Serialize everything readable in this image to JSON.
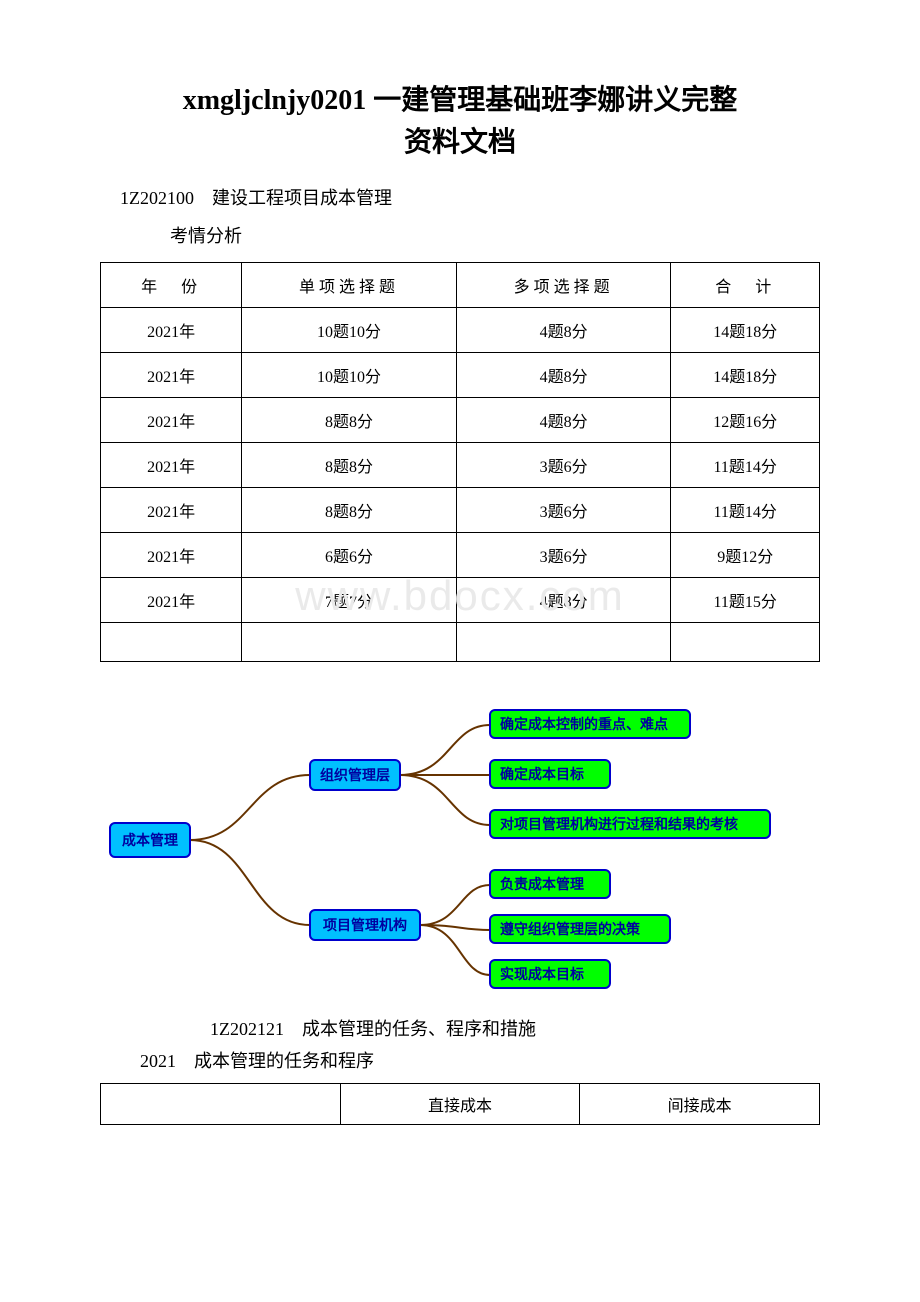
{
  "title_line1": "xmgljclnjy0201 一建管理基础班李娜讲义完整",
  "title_line2": "资料文档",
  "section_code": "1Z202100　建设工程项目成本管理",
  "analysis_label": "考情分析",
  "table": {
    "headers": [
      "年　份",
      "单项选择题",
      "多项选择题",
      "合　计"
    ],
    "rows": [
      [
        "2021年",
        "10题10分",
        "4题8分",
        "14题18分"
      ],
      [
        "2021年",
        "10题10分",
        "4题8分",
        "14题18分"
      ],
      [
        "2021年",
        "8题8分",
        "4题8分",
        "12题16分"
      ],
      [
        "2021年",
        "8题8分",
        "3题6分",
        "11题14分"
      ],
      [
        "2021年",
        "8题8分",
        "3题6分",
        "11题14分"
      ],
      [
        "2021年",
        "6题6分",
        "3题6分",
        "9题12分"
      ],
      [
        "2021年",
        "7题7分",
        "4题8分",
        "11题15分"
      ],
      [
        "",
        "",
        "",
        ""
      ]
    ]
  },
  "watermark": "www.bdocx.com",
  "diagram": {
    "root": "成本管理",
    "branch1": {
      "label": "组织管理层",
      "leaves": [
        "确定成本控制的重点、难点",
        "确定成本目标",
        "对项目管理机构进行过程和结果的考核"
      ]
    },
    "branch2": {
      "label": "项目管理机构",
      "leaves": [
        "负责成本管理",
        "遵守组织管理层的决策",
        "实现成本目标"
      ]
    },
    "colors": {
      "node_fill": "#00c0ff",
      "leaf_fill": "#00ff00",
      "border": "#0000cc",
      "edge": "#663300",
      "text": "#0000a0"
    }
  },
  "bottom_heading_1": "1Z202121　成本管理的任务、程序和措施",
  "bottom_heading_2": "2021　成本管理的任务和程序",
  "cost_table": {
    "row": [
      "",
      "直接成本",
      "间接成本"
    ]
  }
}
